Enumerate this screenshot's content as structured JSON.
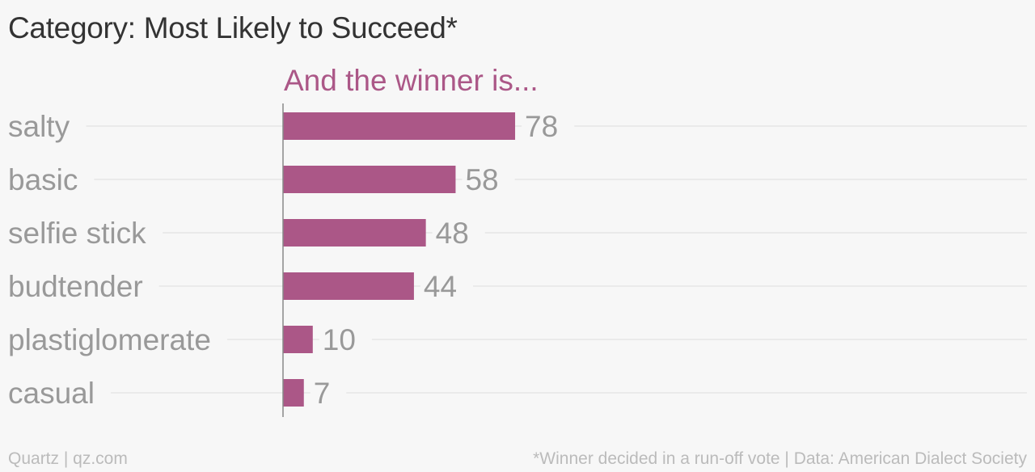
{
  "title": "Category: Most Likely to Succeed*",
  "footer": {
    "credit": "Quartz | qz.com",
    "note": "*Winner decided in a run-off vote | Data: American Dialect Society"
  },
  "colors": {
    "bar": "#ab5787",
    "subtitle": "#ab5787",
    "category_label": "#999999",
    "value_label": "#999999",
    "gridline": "#e6e6e6",
    "axis": "#888888",
    "background": "#f7f7f7"
  },
  "chart_data": {
    "type": "bar",
    "orientation": "horizontal",
    "subtitle": "And the winner is...",
    "categories": [
      "salty",
      "basic",
      "selfie stick",
      "budtender",
      "plastiglomerate",
      "casual"
    ],
    "values": [
      78,
      58,
      48,
      44,
      10,
      7
    ],
    "xlabel": "",
    "ylabel": "",
    "xlim": [
      0,
      250
    ],
    "grid": true,
    "legend": "none"
  }
}
